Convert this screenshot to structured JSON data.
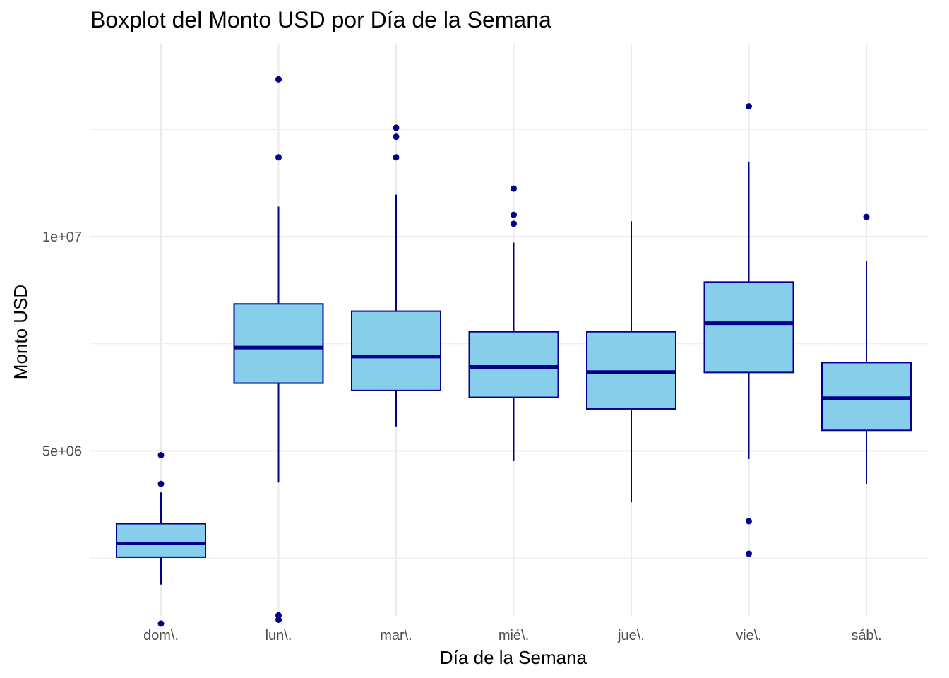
{
  "chart_data": {
    "type": "boxplot",
    "title": "Boxplot del Monto USD por Día de la Semana",
    "xlabel": "Día de la Semana",
    "ylabel": "Monto USD",
    "ylim": [
      1150000,
      14500000
    ],
    "y_ticks": [
      {
        "value": 5000000,
        "label": "5e+06"
      },
      {
        "value": 10000000,
        "label": "1e+07"
      }
    ],
    "y_minor_ticks": [
      2500000,
      7500000,
      12500000
    ],
    "grid": true,
    "colors": {
      "fill": "#87CEEB",
      "stroke": "#00008B",
      "grid": "#EBEBEB"
    },
    "categories": [
      "dom\\.",
      "lun\\.",
      "mar\\.",
      "mié\\.",
      "jue\\.",
      "vie\\.",
      "sáb\\."
    ],
    "boxes": [
      {
        "min": 1880000,
        "q1": 2520000,
        "median": 2840000,
        "q3": 3300000,
        "max": 4030000,
        "outliers": [
          970000,
          4230000,
          4900000
        ]
      },
      {
        "min": 4260000,
        "q1": 6580000,
        "median": 7410000,
        "q3": 8430000,
        "max": 10700000,
        "outliers": [
          1060000,
          1160000,
          11850000,
          13670000
        ]
      },
      {
        "min": 5570000,
        "q1": 6410000,
        "median": 7200000,
        "q3": 8260000,
        "max": 10980000,
        "outliers": [
          11850000,
          12330000,
          12540000
        ]
      },
      {
        "min": 4760000,
        "q1": 6250000,
        "median": 6960000,
        "q3": 7780000,
        "max": 9860000,
        "outliers": [
          10300000,
          10510000,
          11120000
        ]
      },
      {
        "min": 3800000,
        "q1": 5980000,
        "median": 6840000,
        "q3": 7780000,
        "max": 10360000,
        "outliers": []
      },
      {
        "min": 4810000,
        "q1": 6830000,
        "median": 7980000,
        "q3": 8940000,
        "max": 11750000,
        "outliers": [
          2600000,
          3360000,
          13040000
        ]
      },
      {
        "min": 4220000,
        "q1": 5480000,
        "median": 6230000,
        "q3": 7060000,
        "max": 9440000,
        "outliers": [
          10460000
        ]
      }
    ]
  }
}
